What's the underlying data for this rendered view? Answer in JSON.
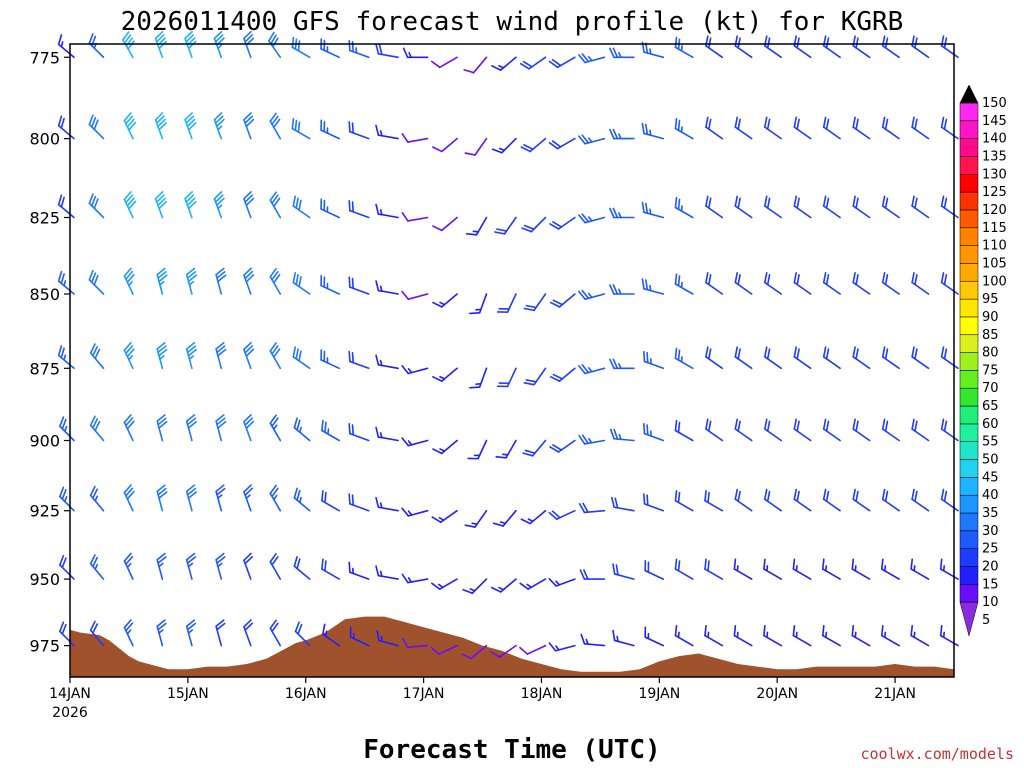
{
  "chart_data": {
    "type": "wind-barb-profile",
    "title": "2026011400 GFS forecast wind profile (kt) for KGRB",
    "xlabel": "Forecast Time (UTC)",
    "credit": "coolwx.com/models",
    "units": "kt",
    "y_ticks": [
      775,
      800,
      825,
      850,
      875,
      900,
      925,
      950,
      975
    ],
    "y_range_hpa": [
      771,
      987
    ],
    "x_range_hours": [
      0,
      180
    ],
    "x_ticks": [
      {
        "label": "14JAN",
        "sub": "2026",
        "hour": 0
      },
      {
        "label": "15JAN",
        "sub": "",
        "hour": 24
      },
      {
        "label": "16JAN",
        "sub": "",
        "hour": 48
      },
      {
        "label": "17JAN",
        "sub": "",
        "hour": 72
      },
      {
        "label": "18JAN",
        "sub": "",
        "hour": 96
      },
      {
        "label": "19JAN",
        "sub": "",
        "hour": 120
      },
      {
        "label": "20JAN",
        "sub": "",
        "hour": 144
      },
      {
        "label": "21JAN",
        "sub": "",
        "hour": 168
      }
    ],
    "colorbar": {
      "values": [
        5,
        10,
        15,
        20,
        25,
        30,
        35,
        40,
        45,
        50,
        55,
        60,
        65,
        70,
        75,
        80,
        85,
        90,
        95,
        100,
        105,
        110,
        115,
        120,
        125,
        130,
        135,
        140,
        145,
        150
      ],
      "colors": [
        "#8a2be2",
        "#6a0dff",
        "#2020ff",
        "#1e3cff",
        "#1e5aff",
        "#1e78ff",
        "#1e96ff",
        "#1eb4ff",
        "#1ed2f0",
        "#1ee6c8",
        "#1ef0a0",
        "#1ef078",
        "#32e632",
        "#64f01e",
        "#a0f01e",
        "#dcf01e",
        "#ffff00",
        "#ffe600",
        "#ffc800",
        "#ffaa00",
        "#ff9600",
        "#ff8200",
        "#ff5a00",
        "#ff3200",
        "#ff0000",
        "#ff1450",
        "#ff0a8c",
        "#ff14c8",
        "#ff28f0",
        "#ff50ff"
      ]
    },
    "terrain_color": "#a0522d",
    "terrain_hpa": [
      [
        0,
        969
      ],
      [
        2,
        970
      ],
      [
        6,
        971
      ],
      [
        8,
        973
      ],
      [
        10,
        976
      ],
      [
        12,
        979
      ],
      [
        14,
        981
      ],
      [
        16,
        982
      ],
      [
        18,
        983
      ],
      [
        20,
        984
      ],
      [
        24,
        984
      ],
      [
        28,
        983
      ],
      [
        32,
        983
      ],
      [
        36,
        982
      ],
      [
        38,
        981
      ],
      [
        40,
        980
      ],
      [
        42,
        978
      ],
      [
        44,
        976
      ],
      [
        46,
        974
      ],
      [
        48,
        973
      ],
      [
        52,
        970
      ],
      [
        56,
        965
      ],
      [
        60,
        964
      ],
      [
        64,
        964
      ],
      [
        68,
        966
      ],
      [
        72,
        968
      ],
      [
        76,
        970
      ],
      [
        80,
        972
      ],
      [
        84,
        975
      ],
      [
        88,
        977
      ],
      [
        92,
        980
      ],
      [
        96,
        982
      ],
      [
        100,
        984
      ],
      [
        104,
        985
      ],
      [
        108,
        985
      ],
      [
        112,
        985
      ],
      [
        116,
        984
      ],
      [
        120,
        981
      ],
      [
        124,
        979
      ],
      [
        128,
        978
      ],
      [
        132,
        980
      ],
      [
        136,
        982
      ],
      [
        140,
        983
      ],
      [
        144,
        984
      ],
      [
        148,
        984
      ],
      [
        152,
        983
      ],
      [
        156,
        983
      ],
      [
        160,
        983
      ],
      [
        164,
        983
      ],
      [
        168,
        982
      ],
      [
        172,
        983
      ],
      [
        176,
        983
      ],
      [
        180,
        984
      ]
    ],
    "wind_profile": {
      "hours": [
        0,
        6,
        12,
        18,
        24,
        30,
        36,
        42,
        48,
        54,
        60,
        66,
        72,
        78,
        84,
        90,
        96,
        102,
        108,
        114,
        120,
        126,
        132,
        138,
        144,
        150,
        156,
        162,
        168,
        174,
        180
      ],
      "levels_hpa": [
        775,
        800,
        825,
        850,
        875,
        900,
        925,
        950,
        975
      ],
      "direction_deg": [
        [
          310,
          315,
          330,
          340,
          340,
          340,
          340,
          325,
          300,
          295,
          290,
          280,
          270,
          240,
          220,
          230,
          235,
          240,
          255,
          270,
          285,
          300,
          305,
          305,
          305,
          305,
          305,
          305,
          305,
          305,
          305
        ],
        [
          310,
          315,
          335,
          340,
          340,
          340,
          340,
          330,
          300,
          295,
          290,
          280,
          260,
          230,
          215,
          225,
          230,
          240,
          255,
          270,
          285,
          300,
          305,
          305,
          305,
          305,
          305,
          305,
          305,
          305,
          305
        ],
        [
          310,
          315,
          335,
          340,
          340,
          340,
          340,
          330,
          305,
          295,
          290,
          280,
          260,
          230,
          210,
          215,
          225,
          235,
          255,
          270,
          285,
          300,
          305,
          305,
          305,
          305,
          305,
          305,
          305,
          305,
          305
        ],
        [
          310,
          315,
          335,
          345,
          345,
          345,
          340,
          330,
          305,
          295,
          290,
          280,
          255,
          230,
          200,
          205,
          215,
          230,
          255,
          270,
          285,
          300,
          305,
          305,
          305,
          305,
          305,
          305,
          305,
          305,
          305
        ],
        [
          310,
          320,
          335,
          345,
          345,
          345,
          340,
          330,
          305,
          295,
          290,
          280,
          255,
          230,
          200,
          205,
          215,
          230,
          255,
          270,
          290,
          300,
          305,
          305,
          305,
          305,
          305,
          305,
          305,
          305,
          305
        ],
        [
          315,
          320,
          335,
          345,
          345,
          345,
          340,
          330,
          310,
          300,
          290,
          280,
          255,
          230,
          205,
          210,
          220,
          235,
          260,
          275,
          290,
          300,
          305,
          305,
          305,
          305,
          305,
          305,
          305,
          305,
          305
        ],
        [
          315,
          320,
          335,
          345,
          345,
          345,
          340,
          330,
          310,
          300,
          290,
          280,
          255,
          235,
          215,
          220,
          230,
          245,
          265,
          280,
          290,
          300,
          300,
          305,
          305,
          305,
          305,
          305,
          305,
          305,
          305
        ],
        [
          315,
          320,
          335,
          345,
          345,
          345,
          340,
          330,
          310,
          300,
          290,
          280,
          260,
          240,
          225,
          230,
          240,
          250,
          270,
          285,
          295,
          300,
          300,
          300,
          300,
          300,
          300,
          300,
          300,
          300,
          300
        ],
        [
          315,
          320,
          335,
          345,
          345,
          345,
          340,
          330,
          315,
          305,
          295,
          285,
          265,
          245,
          230,
          235,
          245,
          255,
          275,
          285,
          295,
          300,
          300,
          300,
          300,
          300,
          300,
          300,
          300,
          300,
          300
        ]
      ],
      "speed_kt": [
        [
          15,
          25,
          40,
          40,
          40,
          35,
          30,
          30,
          30,
          25,
          25,
          20,
          15,
          10,
          10,
          15,
          20,
          20,
          25,
          25,
          25,
          25,
          20,
          20,
          20,
          20,
          20,
          20,
          20,
          20,
          20
        ],
        [
          20,
          30,
          40,
          40,
          40,
          35,
          30,
          30,
          30,
          25,
          20,
          15,
          10,
          10,
          10,
          15,
          20,
          20,
          25,
          25,
          25,
          25,
          20,
          20,
          20,
          20,
          20,
          20,
          20,
          20,
          20
        ],
        [
          20,
          30,
          40,
          40,
          40,
          35,
          30,
          30,
          30,
          25,
          20,
          15,
          10,
          10,
          15,
          20,
          20,
          20,
          25,
          25,
          25,
          25,
          20,
          20,
          20,
          20,
          20,
          20,
          20,
          20,
          20
        ],
        [
          25,
          30,
          35,
          35,
          35,
          30,
          30,
          30,
          30,
          25,
          20,
          15,
          10,
          15,
          15,
          20,
          20,
          20,
          25,
          25,
          25,
          25,
          20,
          20,
          20,
          20,
          20,
          20,
          20,
          20,
          20
        ],
        [
          25,
          30,
          35,
          35,
          35,
          30,
          30,
          30,
          30,
          25,
          20,
          15,
          15,
          15,
          15,
          20,
          20,
          20,
          25,
          25,
          25,
          25,
          20,
          20,
          20,
          20,
          20,
          20,
          20,
          20,
          20
        ],
        [
          25,
          30,
          30,
          30,
          30,
          30,
          30,
          25,
          25,
          25,
          20,
          15,
          15,
          15,
          15,
          15,
          20,
          20,
          25,
          25,
          25,
          20,
          20,
          20,
          20,
          20,
          20,
          20,
          20,
          20,
          20
        ],
        [
          25,
          25,
          30,
          30,
          30,
          25,
          25,
          25,
          25,
          20,
          20,
          15,
          15,
          15,
          15,
          15,
          15,
          20,
          20,
          20,
          20,
          20,
          20,
          20,
          20,
          20,
          20,
          20,
          20,
          20,
          20
        ],
        [
          20,
          25,
          25,
          25,
          25,
          25,
          20,
          20,
          20,
          20,
          15,
          15,
          15,
          15,
          15,
          15,
          15,
          15,
          20,
          20,
          20,
          20,
          20,
          15,
          15,
          15,
          15,
          15,
          15,
          15,
          15
        ],
        [
          20,
          20,
          25,
          25,
          25,
          20,
          20,
          20,
          20,
          15,
          15,
          15,
          10,
          10,
          10,
          10,
          10,
          15,
          15,
          15,
          15,
          15,
          15,
          15,
          15,
          15,
          15,
          15,
          15,
          15,
          15
        ]
      ]
    }
  }
}
